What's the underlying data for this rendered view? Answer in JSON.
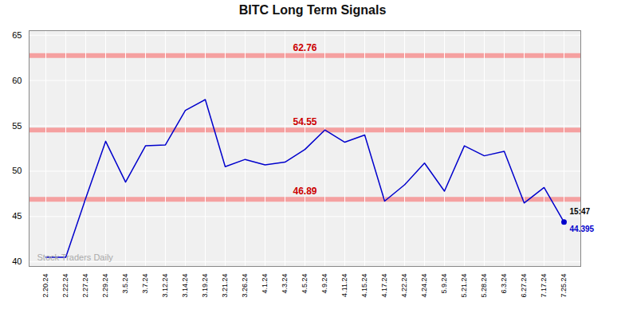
{
  "chart_data": {
    "type": "line",
    "title": "BITC Long Term Signals",
    "categories": [
      "2.20.24",
      "2.22.24",
      "2.27.24",
      "2.29.24",
      "3.5.24",
      "3.7.24",
      "3.12.24",
      "3.14.24",
      "3.19.24",
      "3.21.24",
      "3.26.24",
      "4.1.24",
      "4.3.24",
      "4.5.24",
      "4.9.24",
      "4.11.24",
      "4.15.24",
      "4.17.24",
      "4.22.24",
      "4.24.24",
      "5.9.24",
      "5.21.24",
      "5.28.24",
      "6.3.24",
      "6.27.24",
      "7.17.24",
      "7.25.24"
    ],
    "values": [
      40.5,
      40.5,
      47.0,
      53.3,
      48.8,
      52.8,
      52.9,
      56.7,
      57.9,
      50.5,
      51.3,
      50.7,
      51.0,
      52.4,
      54.55,
      53.2,
      54.0,
      46.7,
      48.5,
      50.9,
      47.8,
      52.8,
      51.7,
      52.2,
      46.5,
      48.2,
      44.395
    ],
    "color": "#0000cc",
    "ylim": [
      39.5,
      65.5
    ],
    "yticks": [
      40,
      45,
      50,
      55,
      60,
      65
    ],
    "grid": true,
    "reference_lines": [
      {
        "y": 62.76,
        "label": "62.76"
      },
      {
        "y": 54.55,
        "label": "54.55"
      },
      {
        "y": 46.89,
        "label": "46.89"
      }
    ],
    "reference_line_color": "#f5a0a0",
    "reference_label_color": "#cc0000",
    "annotations": [
      {
        "category": "7.25.24",
        "y": 44.395,
        "text": "15:47",
        "color": "#000000",
        "marker": "dot"
      },
      {
        "category": "7.25.24",
        "y": 44.395,
        "text": "44.395",
        "color": "#0000cc"
      }
    ],
    "watermark": "Stock Traders Daily"
  }
}
